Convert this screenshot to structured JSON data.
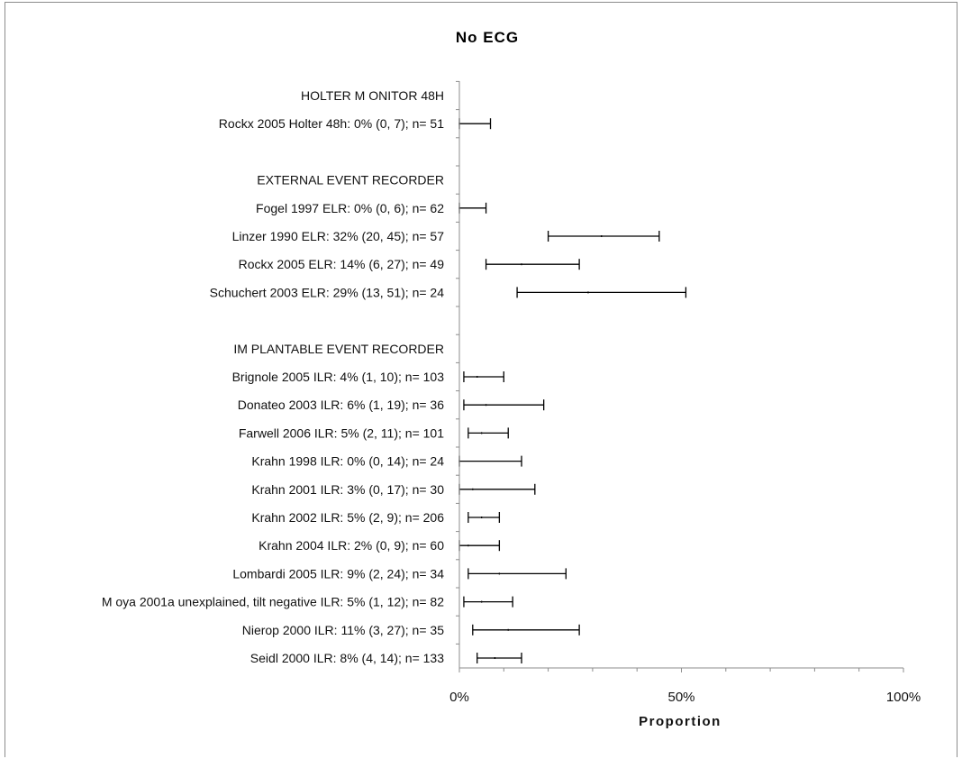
{
  "chart_data": {
    "type": "forest",
    "title": "No ECG",
    "xlabel": "Proportion",
    "xlim": [
      0,
      100
    ],
    "x_ticks": [
      {
        "value": 0,
        "label": "0%"
      },
      {
        "value": 50,
        "label": "50%"
      },
      {
        "value": 100,
        "label": "100%"
      }
    ],
    "grid": false,
    "rows": [
      {
        "label": "HOLTER M ONITOR 48H",
        "header": true
      },
      {
        "label": "Rockx 2005 Holter 48h: 0% (0, 7); n= 51",
        "estimate": 0,
        "lower": 0,
        "upper": 7
      },
      {
        "label": "",
        "spacer": true
      },
      {
        "label": "EXTERNAL EVENT RECORDER",
        "header": true
      },
      {
        "label": "Fogel 1997 ELR: 0% (0, 6); n= 62",
        "estimate": 0,
        "lower": 0,
        "upper": 6
      },
      {
        "label": "Linzer 1990 ELR: 32% (20, 45); n= 57",
        "estimate": 32,
        "lower": 20,
        "upper": 45
      },
      {
        "label": "Rockx 2005 ELR: 14% (6, 27); n= 49",
        "estimate": 14,
        "lower": 6,
        "upper": 27
      },
      {
        "label": "Schuchert 2003 ELR: 29% (13, 51); n= 24",
        "estimate": 29,
        "lower": 13,
        "upper": 51
      },
      {
        "label": "",
        "spacer": true
      },
      {
        "label": "IM PLANTABLE EVENT RECORDER",
        "header": true
      },
      {
        "label": "Brignole 2005 ILR: 4% (1, 10); n= 103",
        "estimate": 4,
        "lower": 1,
        "upper": 10
      },
      {
        "label": "Donateo 2003 ILR: 6% (1, 19); n= 36",
        "estimate": 6,
        "lower": 1,
        "upper": 19
      },
      {
        "label": "Farwell 2006 ILR: 5% (2, 11); n= 101",
        "estimate": 5,
        "lower": 2,
        "upper": 11
      },
      {
        "label": "Krahn 1998 ILR: 0% (0, 14); n= 24",
        "estimate": 0,
        "lower": 0,
        "upper": 14
      },
      {
        "label": "Krahn 2001 ILR: 3% (0, 17); n= 30",
        "estimate": 3,
        "lower": 0,
        "upper": 17
      },
      {
        "label": "Krahn 2002 ILR: 5% (2, 9); n= 206",
        "estimate": 5,
        "lower": 2,
        "upper": 9
      },
      {
        "label": "Krahn 2004 ILR: 2% (0, 9); n= 60",
        "estimate": 2,
        "lower": 0,
        "upper": 9
      },
      {
        "label": "Lombardi 2005 ILR: 9% (2, 24); n= 34",
        "estimate": 9,
        "lower": 2,
        "upper": 24
      },
      {
        "label": "M oya 2001a unexplained, tilt negative ILR: 5% (1, 12); n= 82",
        "estimate": 5,
        "lower": 1,
        "upper": 12
      },
      {
        "label": "Nierop 2000 ILR: 11% (3, 27); n= 35",
        "estimate": 11,
        "lower": 3,
        "upper": 27
      },
      {
        "label": "Seidl 2000 ILR: 8% (4, 14); n= 133",
        "estimate": 8,
        "lower": 4,
        "upper": 14
      }
    ]
  }
}
